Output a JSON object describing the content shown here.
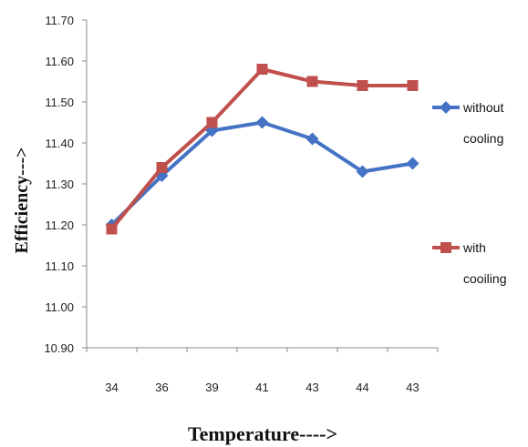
{
  "chart_data": {
    "type": "line",
    "categories": [
      "34",
      "36",
      "39",
      "41",
      "43",
      "44",
      "43"
    ],
    "series": [
      {
        "name": "without cooling",
        "legend_lines": [
          "without",
          "cooling"
        ],
        "color": "#4472c4",
        "marker": "diamond",
        "values": [
          11.2,
          11.32,
          11.43,
          11.45,
          11.41,
          11.33,
          11.35
        ]
      },
      {
        "name": "with cooiling",
        "legend_lines": [
          "with",
          "cooiling"
        ],
        "color": "#c0504d",
        "marker": "square",
        "values": [
          11.19,
          11.34,
          11.45,
          11.58,
          11.55,
          11.54,
          11.54
        ]
      }
    ],
    "xlabel": "Temperature---->",
    "ylabel": "Efficiency--->",
    "ylim": [
      10.9,
      11.7
    ],
    "yticks": [
      "10.90",
      "11.00",
      "11.10",
      "11.20",
      "11.30",
      "11.40",
      "11.50",
      "11.60",
      "11.70"
    ],
    "grid": false,
    "legend_position": "right"
  }
}
